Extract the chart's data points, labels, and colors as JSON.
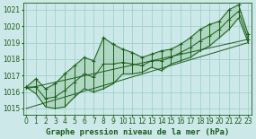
{
  "title": "Graphe pression niveau de la mer (hPa)",
  "bg_color": "#cce8e8",
  "grid_color": "#99cccc",
  "line_color": "#1a5c1a",
  "xlim": [
    -0.3,
    23.3
  ],
  "ylim": [
    1014.6,
    1021.4
  ],
  "yticks": [
    1015,
    1016,
    1017,
    1018,
    1019,
    1020,
    1021
  ],
  "xticks": [
    0,
    1,
    2,
    3,
    4,
    5,
    6,
    7,
    8,
    9,
    10,
    11,
    12,
    13,
    14,
    15,
    16,
    17,
    18,
    19,
    20,
    21,
    22,
    23
  ],
  "x": [
    0,
    1,
    2,
    3,
    4,
    5,
    6,
    7,
    8,
    9,
    10,
    11,
    12,
    13,
    14,
    15,
    16,
    17,
    18,
    19,
    20,
    21,
    22,
    23
  ],
  "y_peak": [
    1016.3,
    1016.8,
    1016.2,
    1016.5,
    1017.1,
    1017.6,
    1018.1,
    1017.9,
    1019.3,
    1018.9,
    1018.6,
    1018.4,
    1018.1,
    1018.3,
    1018.5,
    1018.6,
    1018.9,
    1019.3,
    1019.8,
    1020.1,
    1020.3,
    1021.0,
    1021.3,
    1019.5
  ],
  "y_base": [
    1016.3,
    1015.9,
    1015.1,
    1015.0,
    1015.1,
    1015.7,
    1016.2,
    1016.0,
    1016.2,
    1016.5,
    1017.1,
    1017.1,
    1017.2,
    1017.5,
    1017.3,
    1017.7,
    1017.9,
    1018.1,
    1018.5,
    1018.8,
    1019.3,
    1019.8,
    1020.5,
    1019.0
  ],
  "y_mid": [
    1016.3,
    1016.3,
    1015.6,
    1015.7,
    1016.1,
    1016.6,
    1017.1,
    1016.9,
    1017.7,
    1017.7,
    1017.8,
    1017.7,
    1017.6,
    1017.9,
    1017.9,
    1018.1,
    1018.4,
    1018.7,
    1019.1,
    1019.4,
    1019.8,
    1020.4,
    1020.9,
    1019.2
  ],
  "trend1_x": [
    0,
    23
  ],
  "trend1_y": [
    1015.0,
    1019.0
  ],
  "trend2_x": [
    0,
    23
  ],
  "trend2_y": [
    1016.2,
    1019.2
  ],
  "font_size_title": 6.5,
  "font_size_tick": 5.5,
  "lw": 0.7
}
